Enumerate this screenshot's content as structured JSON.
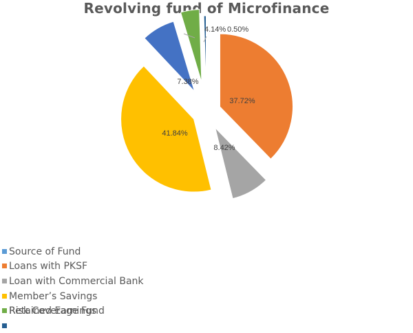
{
  "chart_data": {
    "type": "pie",
    "title": "Revolving fund of Microfinance",
    "slices": [
      {
        "name": "Source of Fund",
        "value": 0,
        "label": "",
        "color": "#5B9BD5"
      },
      {
        "name": "Loans with PKSF",
        "value": 37.72,
        "label": "37.72%",
        "color": "#ED7D31"
      },
      {
        "name": "Loan with Commercial Bank",
        "value": 8.42,
        "label": "8.42%",
        "color": "#A5A5A5"
      },
      {
        "name": "Member’s Savings",
        "value": 41.84,
        "label": "41.84%",
        "color": "#FFC000"
      },
      {
        "name": "Risk Coverage Fund",
        "value": 7.38,
        "label": "7.38%",
        "color": "#4472C4"
      },
      {
        "name": "Retained Earnings",
        "value": 4.14,
        "label": "4.14%",
        "color": "#70AD47"
      },
      {
        "name": "",
        "value": 0.5,
        "label": "0.50%",
        "color": "#255E91"
      }
    ],
    "legend_position": "bottom-left"
  }
}
